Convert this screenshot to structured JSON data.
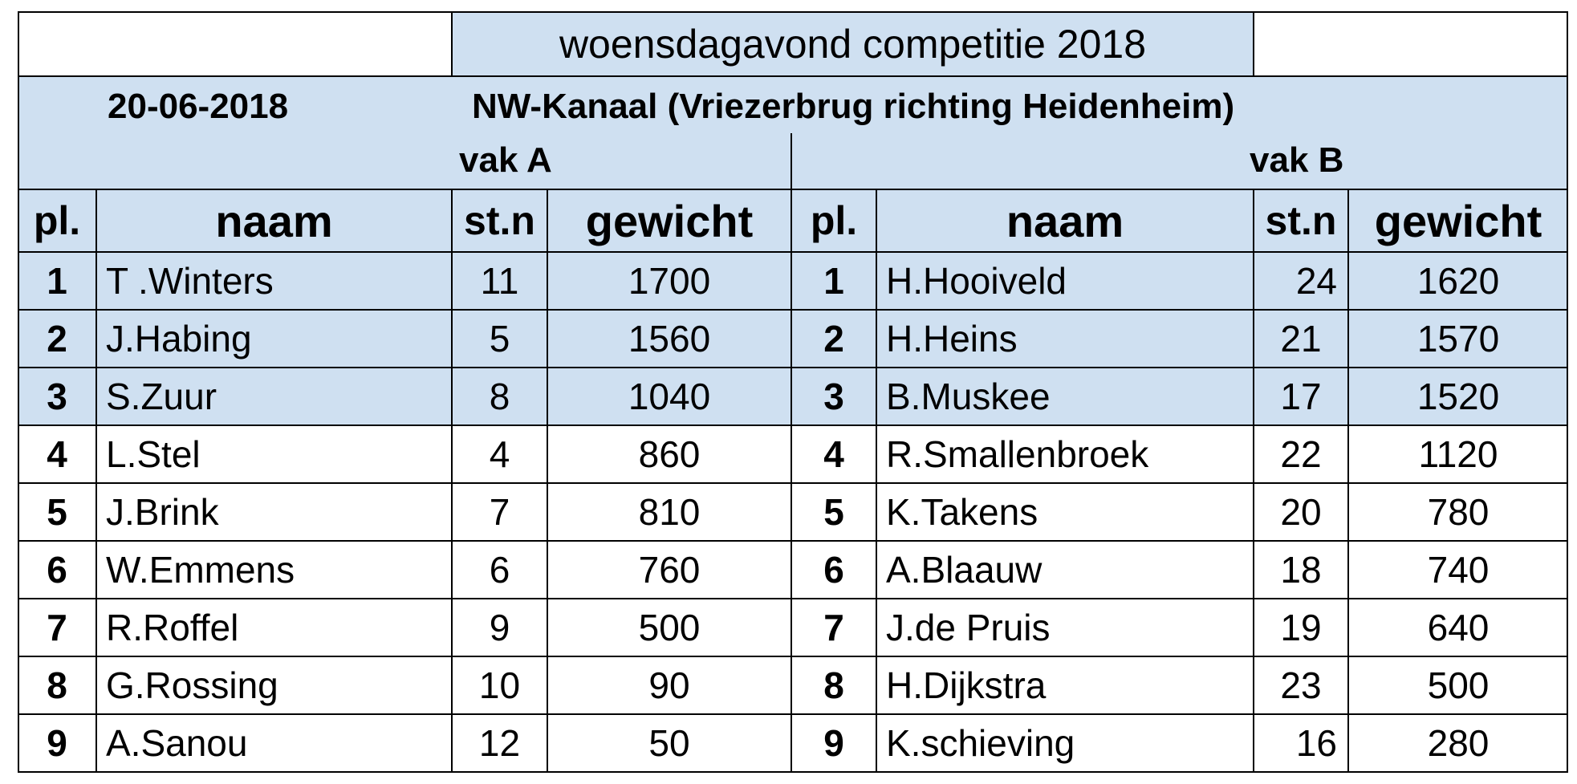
{
  "title": "woensdagavond competitie 2018",
  "date": "20-06-2018",
  "location": "NW-Kanaal (Vriezerbrug richting Heidenheim)",
  "sections": [
    {
      "label": "vak A",
      "headers": [
        "pl.",
        "naam",
        "st.n",
        "gewicht"
      ],
      "rows": [
        {
          "pl": "1",
          "naam": "T .Winters",
          "stn": "11",
          "gewicht": "1700"
        },
        {
          "pl": "2",
          "naam": "J.Habing",
          "stn": "5",
          "gewicht": "1560"
        },
        {
          "pl": "3",
          "naam": "S.Zuur",
          "stn": "8",
          "gewicht": "1040"
        },
        {
          "pl": "4",
          "naam": "L.Stel",
          "stn": "4",
          "gewicht": "860"
        },
        {
          "pl": "5",
          "naam": "J.Brink",
          "stn": "7",
          "gewicht": "810"
        },
        {
          "pl": "6",
          "naam": "W.Emmens",
          "stn": "6",
          "gewicht": "760"
        },
        {
          "pl": "7",
          "naam": "R.Roffel",
          "stn": "9",
          "gewicht": "500"
        },
        {
          "pl": "8",
          "naam": "G.Rossing",
          "stn": "10",
          "gewicht": "90"
        },
        {
          "pl": "9",
          "naam": "A.Sanou",
          "stn": "12",
          "gewicht": "50"
        }
      ]
    },
    {
      "label": "vak B",
      "headers": [
        "pl.",
        "naam",
        "st.n",
        "gewicht"
      ],
      "rows": [
        {
          "pl": "1",
          "naam": "H.Hooiveld",
          "stn": "24",
          "gewicht": "1620"
        },
        {
          "pl": "2",
          "naam": "H.Heins",
          "stn": "21",
          "gewicht": "1570"
        },
        {
          "pl": "3",
          "naam": "B.Muskee",
          "stn": "17",
          "gewicht": "1520"
        },
        {
          "pl": "4",
          "naam": "R.Smallenbroek",
          "stn": "22",
          "gewicht": "1120"
        },
        {
          "pl": "5",
          "naam": "K.Takens",
          "stn": "20",
          "gewicht": "780"
        },
        {
          "pl": "6",
          "naam": "A.Blaauw",
          "stn": "18",
          "gewicht": "740"
        },
        {
          "pl": "7",
          "naam": "J.de Pruis",
          "stn": "19",
          "gewicht": "640"
        },
        {
          "pl": "8",
          "naam": "H.Dijkstra",
          "stn": "23",
          "gewicht": "500"
        },
        {
          "pl": "9",
          "naam": "K.schieving",
          "stn": "16",
          "gewicht": "280"
        }
      ]
    }
  ],
  "colors": {
    "highlight": "#cfe0f1",
    "border": "#000000"
  }
}
